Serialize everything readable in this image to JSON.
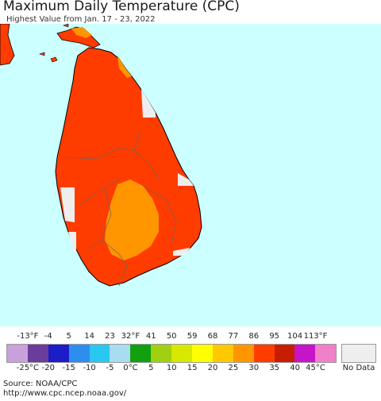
{
  "header": {
    "title": "Maximum Daily Temperature (CPC)",
    "subtitle": "Highest Value from Jan. 17 - 23, 2022"
  },
  "legend": {
    "fahrenheit_labels": [
      "-13°F",
      "-4",
      "5",
      "14",
      "23",
      "32°F",
      "41",
      "50",
      "59",
      "68",
      "77",
      "86",
      "95",
      "104",
      "113°F"
    ],
    "celsius_labels": [
      "-25°C",
      "-20",
      "-15",
      "-10",
      "-5",
      "0°C",
      "5",
      "10",
      "15",
      "20",
      "25",
      "30",
      "35",
      "40",
      "45°C"
    ],
    "colors": [
      "#c8a0dc",
      "#6a3d9a",
      "#1c1cc8",
      "#2e8ef0",
      "#28c8f0",
      "#a8dcf0",
      "#10a010",
      "#a0d010",
      "#d8e800",
      "#ffff00",
      "#ffc800",
      "#ff9600",
      "#ff3c00",
      "#c81e00",
      "#c814c8",
      "#f080c8"
    ],
    "no_data_label": "No Data",
    "no_data_color": "#eeeeee"
  },
  "map": {
    "ocean_color": "#ccffff",
    "land_main_color": "#ff3c00",
    "land_hot_color": "#ff9600",
    "land_nodata_color": "#eeeeee"
  },
  "footer": {
    "source_line": "Source: NOAA/CPC",
    "url_line": "http://www.cpc.ncep.noaa.gov/"
  }
}
